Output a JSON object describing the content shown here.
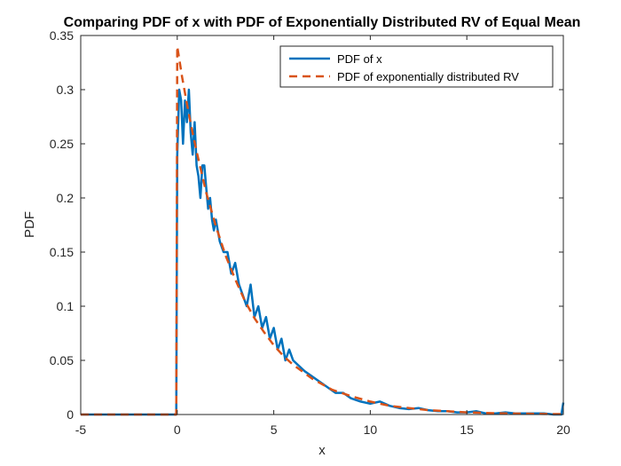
{
  "chart_data": {
    "type": "line",
    "title": "Comparing PDF of x with PDF of Exponentially Distributed RV of Equal Mean",
    "xlabel": "x",
    "ylabel": "PDF",
    "xlim": [
      -5,
      20
    ],
    "ylim": [
      0,
      0.35
    ],
    "xticks": [
      -5,
      0,
      5,
      10,
      15,
      20
    ],
    "yticks": [
      0,
      0.05,
      0.1,
      0.15,
      0.2,
      0.25,
      0.3,
      0.35
    ],
    "xtick_labels": [
      "-5",
      "0",
      "5",
      "10",
      "15",
      "20"
    ],
    "ytick_labels": [
      "0",
      "0.05",
      "0.1",
      "0.15",
      "0.2",
      "0.25",
      "0.3",
      "0.35"
    ],
    "grid": false,
    "legend_position": "top-right",
    "series": [
      {
        "name": "PDF of x",
        "color": "#0072BD",
        "style": "solid",
        "x": [
          -5,
          -0.05,
          0.0,
          0.1,
          0.2,
          0.3,
          0.4,
          0.5,
          0.6,
          0.7,
          0.8,
          0.9,
          1.0,
          1.1,
          1.2,
          1.3,
          1.4,
          1.5,
          1.6,
          1.7,
          1.8,
          1.9,
          2.0,
          2.2,
          2.4,
          2.6,
          2.8,
          3.0,
          3.2,
          3.4,
          3.6,
          3.8,
          4.0,
          4.2,
          4.4,
          4.6,
          4.8,
          5.0,
          5.2,
          5.4,
          5.6,
          5.8,
          6.0,
          6.3,
          6.6,
          7.0,
          7.4,
          7.8,
          8.2,
          8.6,
          9.0,
          9.5,
          10.0,
          10.5,
          11.0,
          11.5,
          12.0,
          12.5,
          13.0,
          13.5,
          14.0,
          14.5,
          15.0,
          15.5,
          16.0,
          16.5,
          17.0,
          17.5,
          18.0,
          18.5,
          19.0,
          19.5,
          19.9,
          20.0
        ],
        "y": [
          0,
          0,
          0.24,
          0.3,
          0.29,
          0.25,
          0.29,
          0.27,
          0.3,
          0.26,
          0.24,
          0.27,
          0.23,
          0.22,
          0.2,
          0.23,
          0.23,
          0.21,
          0.19,
          0.2,
          0.18,
          0.17,
          0.18,
          0.16,
          0.15,
          0.15,
          0.13,
          0.14,
          0.12,
          0.11,
          0.1,
          0.12,
          0.09,
          0.1,
          0.08,
          0.09,
          0.07,
          0.08,
          0.06,
          0.07,
          0.05,
          0.06,
          0.05,
          0.045,
          0.04,
          0.035,
          0.03,
          0.025,
          0.02,
          0.02,
          0.015,
          0.012,
          0.01,
          0.012,
          0.008,
          0.006,
          0.005,
          0.006,
          0.004,
          0.003,
          0.003,
          0.002,
          0.002,
          0.003,
          0.001,
          0.001,
          0.002,
          0.001,
          0.001,
          0.001,
          0.001,
          0.0,
          0.0,
          0.011
        ]
      },
      {
        "name": "PDF of exponentially distributed RV",
        "color": "#D95319",
        "style": "dashed",
        "x": [
          -5,
          -0.05,
          0.0,
          0.25,
          0.5,
          0.75,
          1.0,
          1.5,
          2.0,
          2.5,
          3.0,
          3.5,
          4.0,
          4.5,
          5.0,
          5.5,
          6.0,
          7.0,
          8.0,
          9.0,
          10.0,
          11.0,
          12.0,
          13.0,
          14.0,
          15.0,
          16.0,
          17.0,
          18.0,
          19.0,
          20.0
        ],
        "y": [
          0,
          0,
          0.34,
          0.312,
          0.287,
          0.264,
          0.243,
          0.205,
          0.174,
          0.147,
          0.125,
          0.105,
          0.089,
          0.076,
          0.064,
          0.054,
          0.046,
          0.033,
          0.023,
          0.017,
          0.012,
          0.008,
          0.006,
          0.004,
          0.003,
          0.002,
          0.0015,
          0.001,
          0.0008,
          0.0005,
          0.0004
        ]
      }
    ]
  }
}
